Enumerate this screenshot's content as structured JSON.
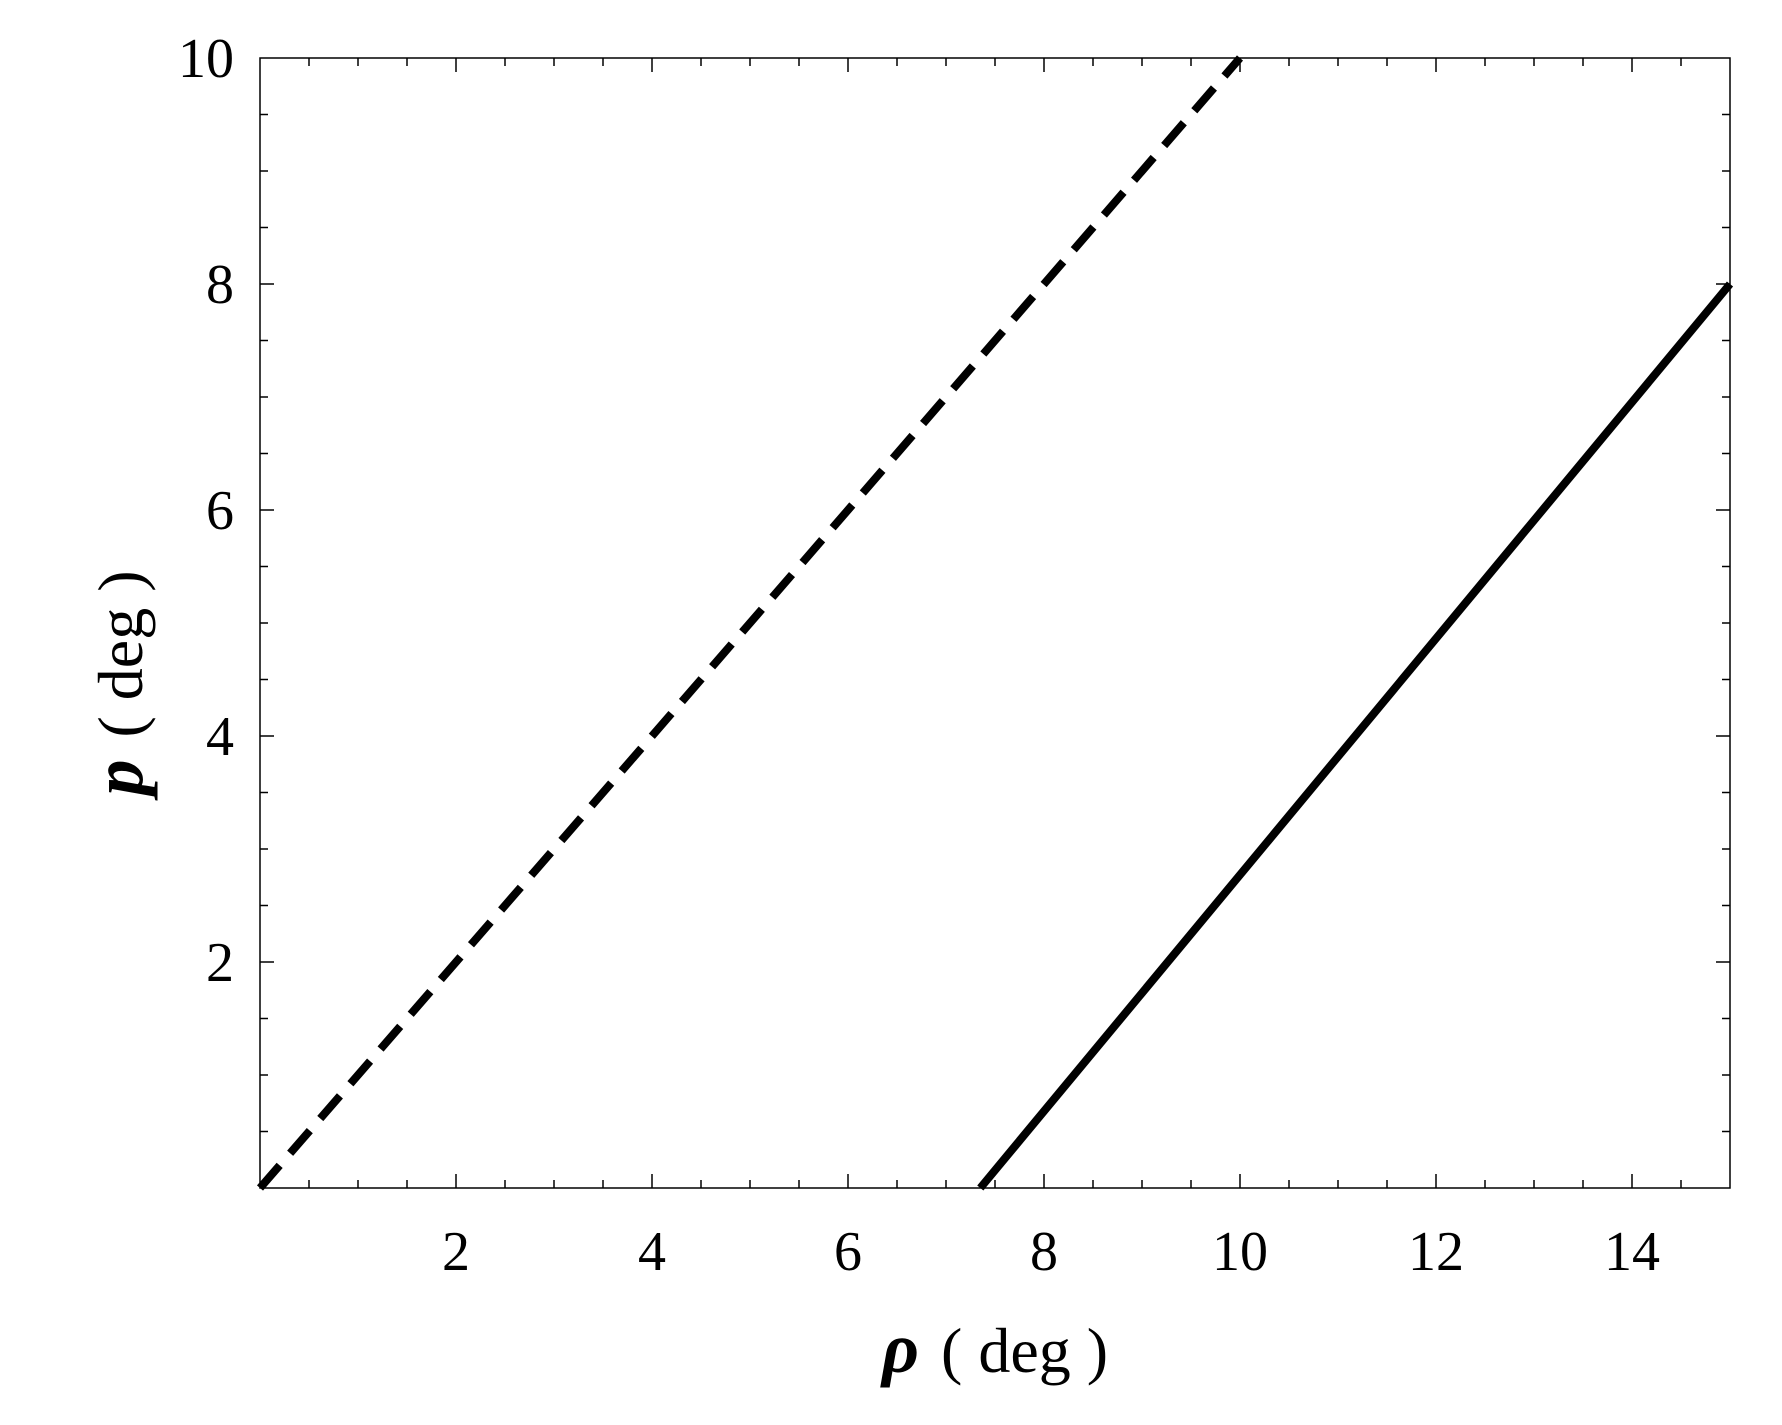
{
  "chart_data": {
    "type": "line",
    "x_axis": {
      "symbol": "ρ",
      "unit_label": "( deg )",
      "range": [
        0,
        15
      ],
      "tick_labels": [
        "2",
        "4",
        "6",
        "8",
        "10",
        "12",
        "14"
      ],
      "tick_values": [
        2,
        4,
        6,
        8,
        10,
        12,
        14
      ],
      "minor_step": 0.5
    },
    "y_axis": {
      "symbol": "p",
      "unit_label": "( deg )",
      "range": [
        0,
        10
      ],
      "tick_labels": [
        "2",
        "4",
        "6",
        "8",
        "10"
      ],
      "tick_values": [
        2,
        4,
        6,
        8,
        10
      ],
      "minor_step": 0.5
    },
    "grid": false,
    "legend": "none",
    "series": [
      {
        "style": "dashed",
        "color": "#000000",
        "x": [
          0,
          10
        ],
        "y": [
          0,
          10
        ]
      },
      {
        "style": "solid",
        "color": "#000000",
        "x": [
          7.35,
          15
        ],
        "y": [
          0,
          8
        ]
      }
    ]
  }
}
